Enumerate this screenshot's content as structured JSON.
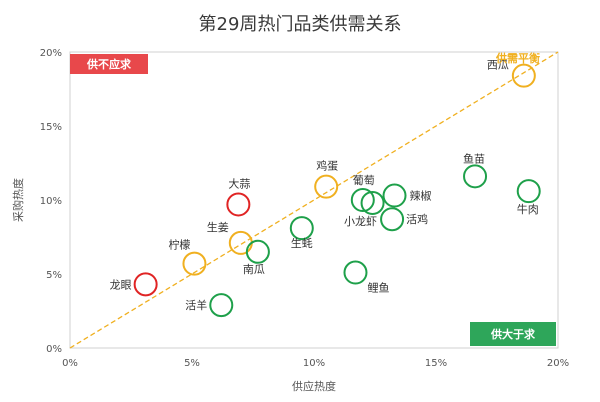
{
  "chart_data": {
    "type": "scatter",
    "title": "第29周热门品类供需关系",
    "xlabel": "供应热度",
    "ylabel": "采购热度",
    "xlim": [
      0,
      20
    ],
    "ylim": [
      0,
      20
    ],
    "x_ticks": [
      "0%",
      "5%",
      "10%",
      "15%",
      "20%"
    ],
    "y_ticks": [
      "0%",
      "5%",
      "10%",
      "15%",
      "20%"
    ],
    "grid": false,
    "diagonal_label": "供需平衡",
    "corner_labels": {
      "top_left": "供不应求",
      "bottom_right": "供大于求"
    },
    "category_colors": {
      "shortage": "#e02424",
      "balanced": "#f0b020",
      "surplus": "#1ea04a"
    },
    "points": [
      {
        "label": "西瓜",
        "x": 18.6,
        "y": 18.4,
        "category": "balanced"
      },
      {
        "label": "鱼苗",
        "x": 16.6,
        "y": 11.6,
        "category": "surplus"
      },
      {
        "label": "牛肉",
        "x": 18.8,
        "y": 10.6,
        "category": "surplus"
      },
      {
        "label": "鸡蛋",
        "x": 10.5,
        "y": 10.9,
        "category": "balanced"
      },
      {
        "label": "葡萄",
        "x": 12.0,
        "y": 10.0,
        "category": "surplus"
      },
      {
        "label": "辣椒",
        "x": 13.3,
        "y": 10.3,
        "category": "surplus"
      },
      {
        "label": "小龙虾",
        "x": 12.4,
        "y": 9.8,
        "category": "surplus"
      },
      {
        "label": "活鸡",
        "x": 13.2,
        "y": 8.7,
        "category": "surplus"
      },
      {
        "label": "大蒜",
        "x": 6.9,
        "y": 9.7,
        "category": "shortage"
      },
      {
        "label": "生蚝",
        "x": 9.5,
        "y": 8.1,
        "category": "surplus"
      },
      {
        "label": "生姜",
        "x": 7.0,
        "y": 7.1,
        "category": "balanced"
      },
      {
        "label": "南瓜",
        "x": 7.7,
        "y": 6.5,
        "category": "surplus"
      },
      {
        "label": "柠檬",
        "x": 5.1,
        "y": 5.7,
        "category": "balanced"
      },
      {
        "label": "鲤鱼",
        "x": 11.7,
        "y": 5.1,
        "category": "surplus"
      },
      {
        "label": "龙眼",
        "x": 3.1,
        "y": 4.3,
        "category": "shortage"
      },
      {
        "label": "活羊",
        "x": 6.2,
        "y": 2.9,
        "category": "surplus"
      }
    ]
  }
}
